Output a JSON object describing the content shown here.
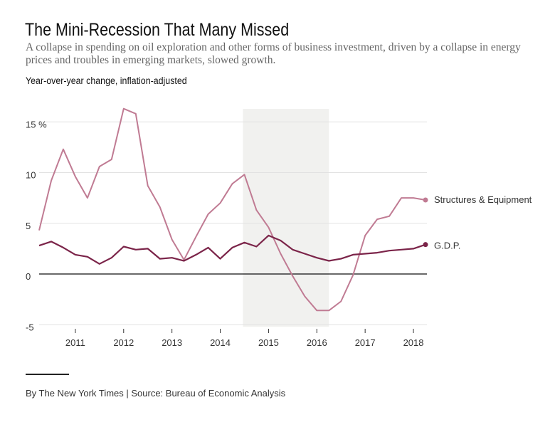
{
  "header": {
    "title": "The Mini-Recession That Many Missed",
    "subtitle": "A collapse in spending on oil exploration and other forms of business investment, driven by a collapse in energy prices and troubles in emerging markets, slowed growth.",
    "ylabel": "Year-over-year change, inflation-adjusted"
  },
  "footer": {
    "source": "By The New York Times | Source: Bureau of Economic Analysis"
  },
  "chart_data": {
    "type": "line",
    "title": "The Mini-Recession That Many Missed",
    "ylabel": "Year-over-year change, inflation-adjusted",
    "xlabel": "",
    "xlim": [
      2010.25,
      2018.25
    ],
    "ylim": [
      -5,
      16.5
    ],
    "x_ticks": [
      2011,
      2012,
      2013,
      2014,
      2015,
      2016,
      2017,
      2018
    ],
    "x_tick_labels": [
      "2011",
      "2012",
      "2013",
      "2014",
      "2015",
      "2016",
      "2017",
      "2018"
    ],
    "y_ticks": [
      -5,
      0,
      5,
      10,
      15
    ],
    "y_tick_labels": [
      "-5",
      "0",
      "5",
      "10",
      "15 %"
    ],
    "grid": true,
    "shaded_period": [
      2014.5,
      2016.25
    ],
    "legend": "direct labels at right end of lines",
    "x": [
      2010.25,
      2010.5,
      2010.75,
      2011,
      2011.25,
      2011.5,
      2011.75,
      2012,
      2012.25,
      2012.5,
      2012.75,
      2013,
      2013.25,
      2013.5,
      2013.75,
      2014,
      2014.25,
      2014.5,
      2014.75,
      2015,
      2015.25,
      2015.5,
      2015.75,
      2016,
      2016.25,
      2016.5,
      2016.75,
      2017,
      2017.25,
      2017.5,
      2017.75,
      2018,
      2018.25
    ],
    "series": [
      {
        "name": "Structures & Equipment",
        "color": "#c07b93",
        "values": [
          4.3,
          9.2,
          12.3,
          9.6,
          7.5,
          10.6,
          11.3,
          16.3,
          15.8,
          8.7,
          6.6,
          3.4,
          1.4,
          3.7,
          5.9,
          7.0,
          8.9,
          9.8,
          6.3,
          4.6,
          2.0,
          -0.2,
          -2.2,
          -3.6,
          -3.6,
          -2.7,
          -0.1,
          3.8,
          5.4,
          5.7,
          7.5,
          7.5,
          7.3
        ]
      },
      {
        "name": "G.D.P.",
        "color": "#7b2449",
        "values": [
          2.8,
          3.2,
          2.6,
          1.9,
          1.7,
          1.0,
          1.6,
          2.7,
          2.4,
          2.5,
          1.5,
          1.6,
          1.3,
          1.9,
          2.6,
          1.5,
          2.6,
          3.1,
          2.7,
          3.8,
          3.3,
          2.4,
          2.0,
          1.6,
          1.3,
          1.5,
          1.9,
          2.0,
          2.1,
          2.3,
          2.4,
          2.5,
          2.9
        ]
      }
    ]
  }
}
